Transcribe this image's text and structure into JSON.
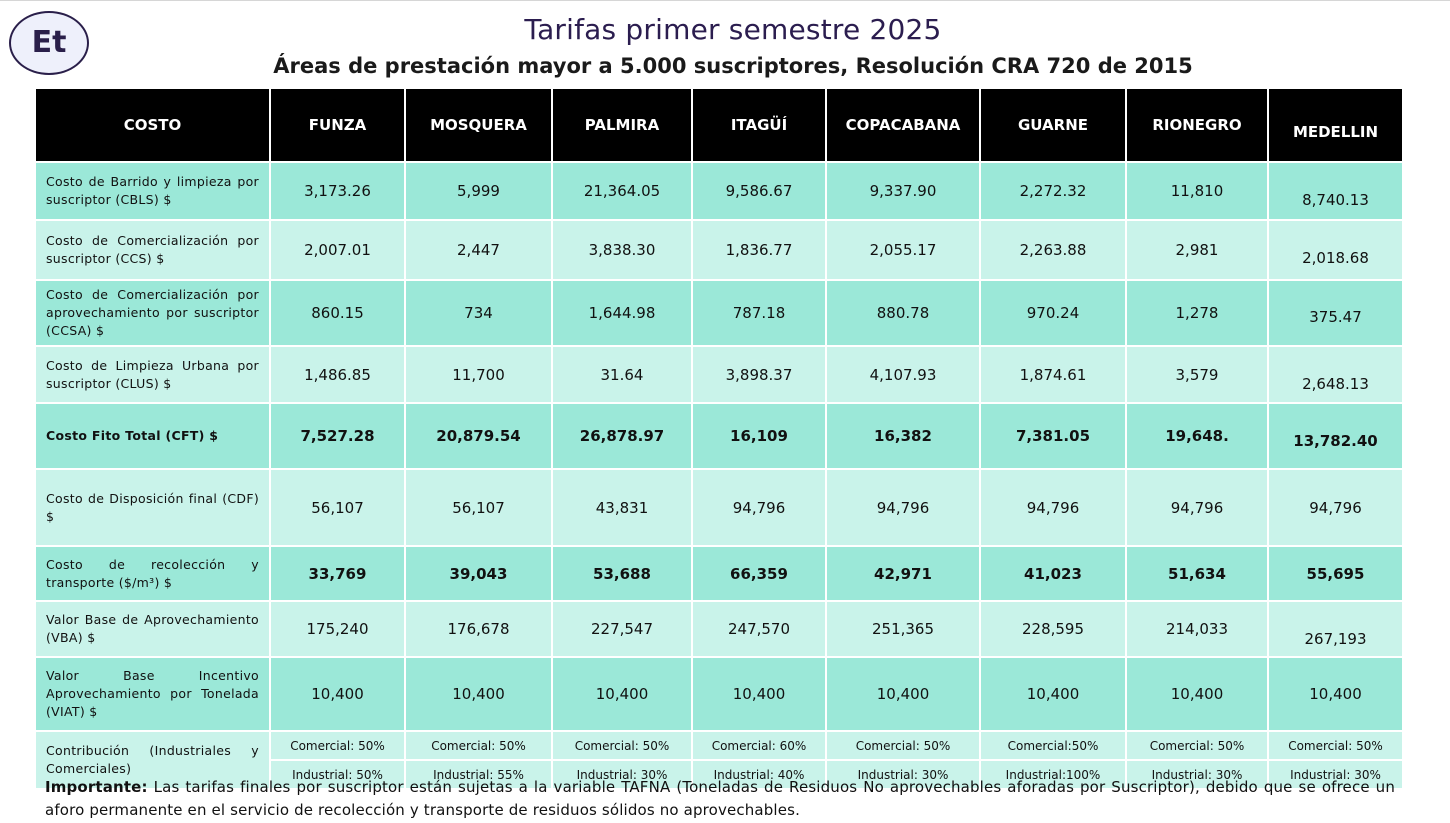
{
  "logo": {
    "text": "Et"
  },
  "header": {
    "title": "Tarifas primer semestre 2025",
    "subtitle": "Áreas de prestación mayor a 5.000 suscriptores, Resolución CRA 720 de 2015"
  },
  "table": {
    "columns": [
      "COSTO",
      "FUNZA",
      "MOSQUERA",
      "PALMIRA",
      "ITAGÜÍ",
      "COPACABANA",
      "GUARNE",
      "RIONEGRO",
      "MEDELLIN"
    ],
    "rows": [
      {
        "label": "Costo de Barrido y limpieza por suscriptor (CBLS) $",
        "values": [
          "3,173.26",
          "5,999",
          "21,364.05",
          "9,586.67",
          "9,337.90",
          "2,272.32",
          "11,810",
          "8,740.13"
        ]
      },
      {
        "label": "Costo de Comercialización por suscriptor (CCS) $",
        "values": [
          "2,007.01",
          "2,447",
          "3,838.30",
          "1,836.77",
          "2,055.17",
          "2,263.88",
          "2,981",
          "2,018.68"
        ]
      },
      {
        "label": "Costo de Comercialización por aprovechamiento por suscriptor (CCSA) $",
        "values": [
          "860.15",
          "734",
          "1,644.98",
          "787.18",
          "880.78",
          "970.24",
          "1,278",
          "375.47"
        ]
      },
      {
        "label": "Costo de Limpieza Urbana por suscriptor (CLUS) $",
        "values": [
          "1,486.85",
          "11,700",
          "31.64",
          "3,898.37",
          "4,107.93",
          "1,874.61",
          "3,579",
          "2,648.13"
        ]
      },
      {
        "label": "Costo Fito Total (CFT) $",
        "values": [
          "7,527.28",
          "20,879.54",
          "26,878.97",
          "16,109",
          "16,382",
          "7,381.05",
          "19,648.",
          "13,782.40"
        ]
      },
      {
        "label": "Costo de Disposición final (CDF) $",
        "values": [
          "56,107",
          "56,107",
          "43,831",
          "94,796",
          "94,796",
          "94,796",
          "94,796",
          "94,796"
        ]
      },
      {
        "label": "Costo de recolección y transporte ($/m³) $",
        "values": [
          "33,769",
          "39,043",
          "53,688",
          "66,359",
          "42,971",
          "41,023",
          "51,634",
          "55,695"
        ]
      },
      {
        "label": "Valor Base de Aprovechamiento (VBA) $",
        "values": [
          "175,240",
          "176,678",
          "227,547",
          "247,570",
          "251,365",
          "228,595",
          "214,033",
          "267,193"
        ]
      },
      {
        "label": "Valor Base Incentivo Aprovechamiento por Tonelada (VIAT) $",
        "values": [
          "10,400",
          "10,400",
          "10,400",
          "10,400",
          "10,400",
          "10,400",
          "10,400",
          "10,400"
        ]
      }
    ],
    "contribution": {
      "label": "Contribución (Industriales y Comerciales)",
      "comercial": [
        "Comercial: 50%",
        "Comercial: 50%",
        "Comercial: 50%",
        "Comercial: 60%",
        "Comercial: 50%",
        "Comercial:50%",
        "Comercial: 50%",
        "Comercial: 50%"
      ],
      "industrial": [
        "Industrial: 50%",
        "Industrial: 55%",
        "Industrial: 30%",
        "Industrial: 40%",
        "Industrial: 30%",
        "Industrial:100%",
        "Industrial: 30%",
        "Industrial: 30%"
      ]
    }
  },
  "note": {
    "bold": "Importante:",
    "text": " Las tarifas finales por suscriptor están sujetas a la variable TAFNA (Toneladas de Residuos No aprovechables aforadas por Suscriptor), debido que se ofrece un aforo  permanente en el servicio de recolección y transporte de residuos sólidos no  aprovechables."
  },
  "colors": {
    "header_bg": "#000000",
    "row_dark": "#9be8d8",
    "row_light": "#c9f3ea",
    "title": "#2b1d4f"
  }
}
